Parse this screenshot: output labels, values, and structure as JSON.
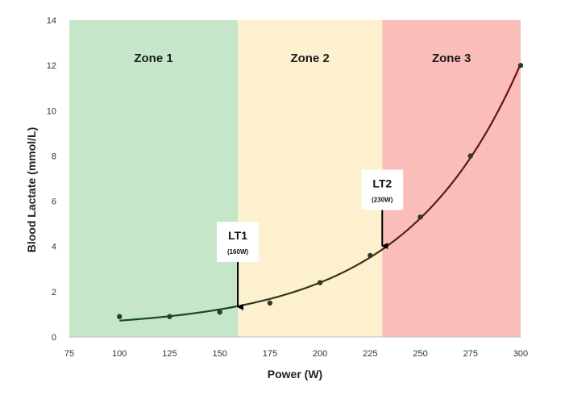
{
  "chart_data": {
    "type": "scatter",
    "xlabel": "Power (W)",
    "ylabel": "Blood Lactate (mmol/L)",
    "xlim": [
      75,
      300
    ],
    "ylim": [
      0,
      14
    ],
    "x_ticks": [
      "75",
      "100",
      "125",
      "150",
      "175",
      "200",
      "225",
      "250",
      "275",
      "300"
    ],
    "y_ticks": [
      "0",
      "2",
      "4",
      "6",
      "8",
      "10",
      "12",
      "14"
    ],
    "grid": false,
    "points": [
      {
        "x": 100,
        "y": 0.9
      },
      {
        "x": 125,
        "y": 0.9
      },
      {
        "x": 150,
        "y": 1.1
      },
      {
        "x": 175,
        "y": 1.5
      },
      {
        "x": 200,
        "y": 2.4
      },
      {
        "x": 225,
        "y": 3.6
      },
      {
        "x": 250,
        "y": 5.3
      },
      {
        "x": 275,
        "y": 8.0
      },
      {
        "x": 300,
        "y": 12.0
      }
    ],
    "trendline": {
      "type": "exponential-fit"
    },
    "zones": [
      {
        "label": "Zone 1",
        "x_start": 75,
        "x_end": 159,
        "color": "#c5e6c8"
      },
      {
        "label": "Zone 2",
        "x_start": 159,
        "x_end": 231,
        "color": "#fdf0cf"
      },
      {
        "label": "Zone 3",
        "x_start": 231,
        "x_end": 300,
        "color": "#fbbdba"
      }
    ],
    "annotations": [
      {
        "label": "LT1",
        "sublabel": "(160W)",
        "x": 159,
        "y": 1.25,
        "label_x": 159,
        "label_y": 4.2
      },
      {
        "label": "LT2",
        "sublabel": "(230W)",
        "x": 231,
        "y": 3.95,
        "label_x": 231,
        "label_y": 6.5
      }
    ],
    "colors": {
      "points": "#2d3a2d",
      "curve_start": "#0f4d22",
      "curve_end": "#6b0e0e"
    }
  }
}
